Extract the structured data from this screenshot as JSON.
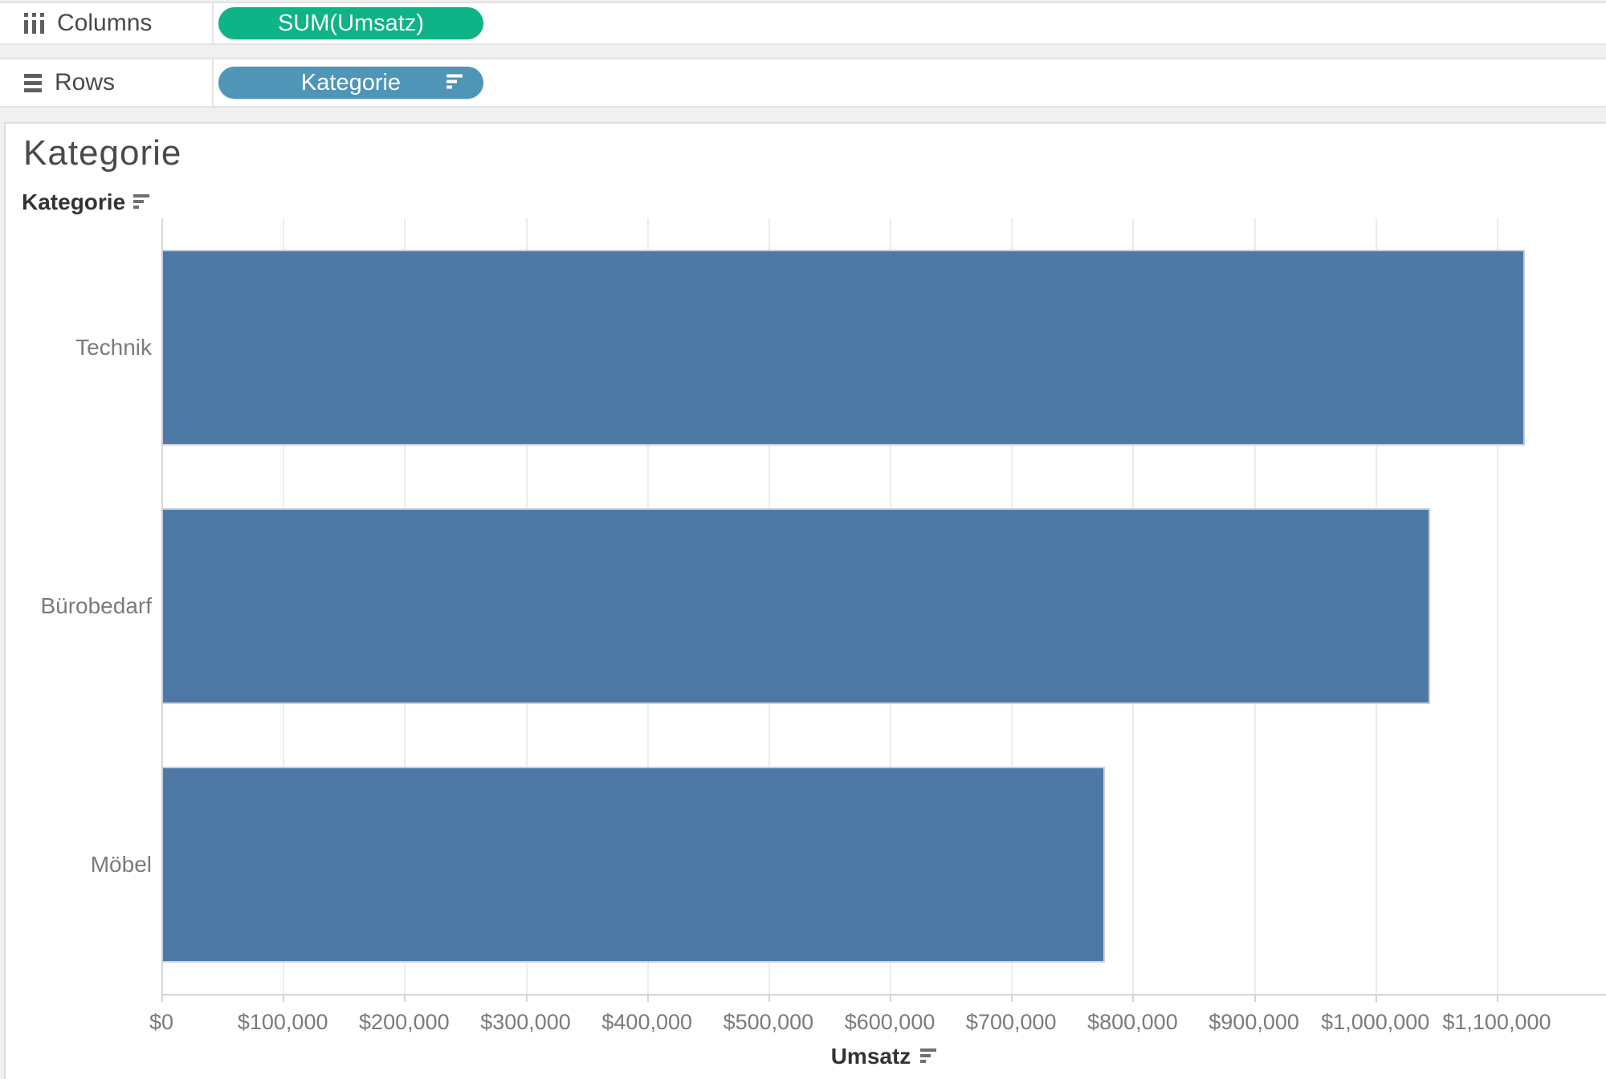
{
  "shelves": {
    "columns": {
      "label": "Columns",
      "pill": "SUM(Umsatz)",
      "pill_color": "#0eb388",
      "pill_type": "measure"
    },
    "rows": {
      "label": "Rows",
      "pill": "Kategorie",
      "pill_color": "#4e95b7",
      "pill_type": "dimension",
      "pill_sorted_descending": true
    }
  },
  "sheet": {
    "title": "Kategorie",
    "column_field_label": "Kategorie"
  },
  "chart_data": {
    "type": "bar",
    "orientation": "horizontal",
    "title": "Kategorie",
    "categories": [
      "Technik",
      "Bürobedarf",
      "Möbel"
    ],
    "series_name": "SUM(Umsatz)",
    "values": [
      1123000,
      1045000,
      777000
    ],
    "xlabel": "Umsatz",
    "ylabel": "Kategorie",
    "xlim": [
      0,
      1190000
    ],
    "x_ticks": [
      {
        "value": 0,
        "label": "$0"
      },
      {
        "value": 100000,
        "label": "$100,000"
      },
      {
        "value": 200000,
        "label": "$200,000"
      },
      {
        "value": 300000,
        "label": "$300,000"
      },
      {
        "value": 400000,
        "label": "$400,000"
      },
      {
        "value": 500000,
        "label": "$500,000"
      },
      {
        "value": 600000,
        "label": "$600,000"
      },
      {
        "value": 700000,
        "label": "$700,000"
      },
      {
        "value": 800000,
        "label": "$800,000"
      },
      {
        "value": 900000,
        "label": "$900,000"
      },
      {
        "value": 1000000,
        "label": "$1,000,000"
      },
      {
        "value": 1100000,
        "label": "$1,100,000"
      }
    ],
    "sort": "descending",
    "grid": true,
    "legend": "none",
    "bar_color": "#4e79a7"
  },
  "colors": {
    "bar": "#4e79a7",
    "measure_pill": "#0eb388",
    "dimension_pill": "#4e95b7",
    "gridline": "#ececec",
    "axis_text": "#7b7b7b"
  }
}
